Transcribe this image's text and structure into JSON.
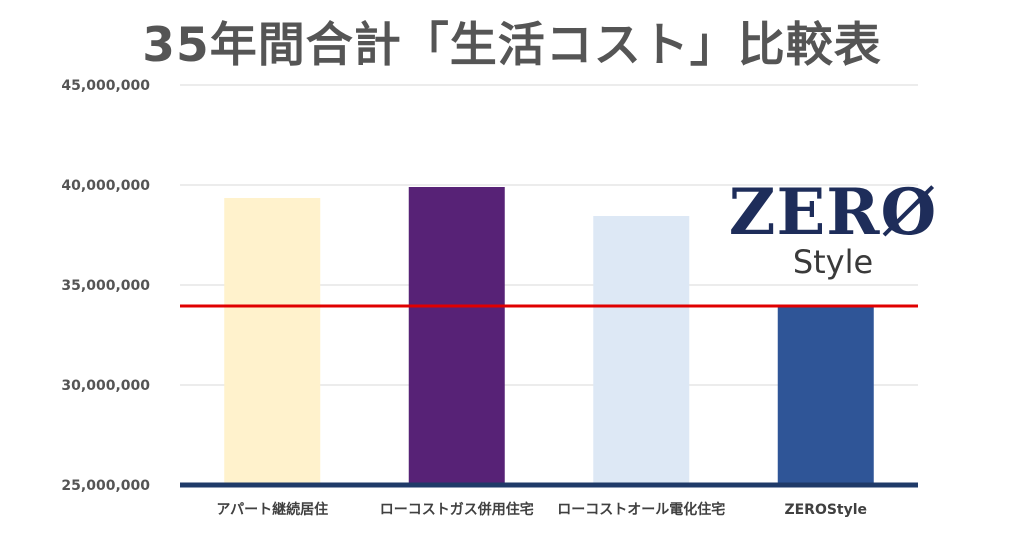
{
  "chart_data": {
    "type": "bar",
    "title": "35年間合計「生活コスト」比較表",
    "categories": [
      "アパート継続居住",
      "ローコストガス併用住宅",
      "ローコストオール電化住宅",
      "ZEROStyle"
    ],
    "values": [
      39350000,
      39900000,
      38450000,
      33900000
    ],
    "bar_colors": [
      "#fff2cc",
      "#572276",
      "#dde8f5",
      "#2f5597"
    ],
    "ylim": [
      25000000,
      45000000
    ],
    "yticks": [
      25000000,
      30000000,
      35000000,
      40000000,
      45000000
    ],
    "ytick_labels": [
      "25,000,000",
      "30,000,000",
      "35,000,000",
      "40,000,000",
      "45,000,000"
    ],
    "reference_line": {
      "value": 33950000,
      "color": "#e00000"
    },
    "baseline_color": "#1f3a68",
    "grid": true,
    "xlabel": "",
    "ylabel": ""
  },
  "logo": {
    "main": "ZERØ",
    "sub": "Style",
    "color": "#1e2d5a"
  }
}
